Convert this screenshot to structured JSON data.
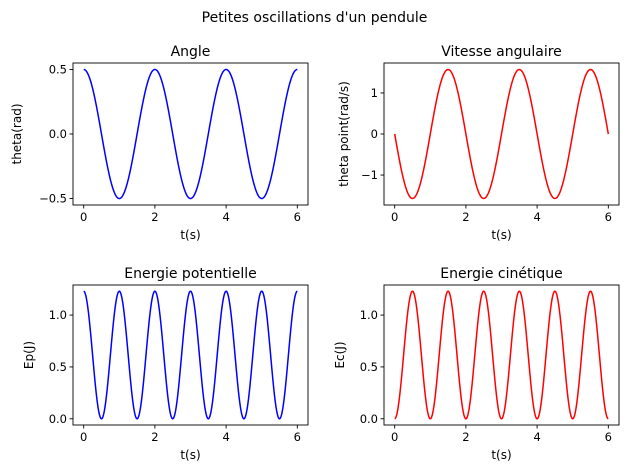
{
  "figure": {
    "suptitle": "Petites oscillations d'un pendule"
  },
  "chart_data": [
    {
      "type": "line",
      "title": "Angle",
      "xlabel": "t(s)",
      "ylabel": "theta(rad)",
      "xlim": [
        -0.3,
        6.3
      ],
      "ylim": [
        -0.55,
        0.55
      ],
      "xticks": [
        0,
        2,
        4,
        6
      ],
      "yticks": [
        -0.5,
        0.0,
        0.5
      ],
      "ytick_labels": [
        "−0.5",
        "0.0",
        "0.5"
      ],
      "color": "#0000ff",
      "x_range": [
        0,
        6
      ],
      "function": "0.5*cos(pi*t)",
      "series": [
        {
          "x": [
            0,
            0.5,
            1,
            1.5,
            2,
            2.5,
            3,
            3.5,
            4,
            4.5,
            5,
            5.5,
            6
          ],
          "values": [
            0.5,
            0,
            -0.5,
            0,
            0.5,
            0,
            -0.5,
            0,
            0.5,
            0,
            -0.5,
            0,
            0.5
          ]
        }
      ]
    },
    {
      "type": "line",
      "title": "Vitesse angulaire",
      "xlabel": "t(s)",
      "ylabel": "theta point(rad/s)",
      "xlim": [
        -0.3,
        6.3
      ],
      "ylim": [
        -1.73,
        1.73
      ],
      "xticks": [
        0,
        2,
        4,
        6
      ],
      "yticks": [
        -1,
        0,
        1
      ],
      "ytick_labels": [
        "−1",
        "0",
        "1"
      ],
      "color": "#ff0000",
      "x_range": [
        0,
        6
      ],
      "function": "-0.5*pi*sin(pi*t)",
      "series": [
        {
          "x": [
            0,
            0.5,
            1,
            1.5,
            2,
            2.5,
            3,
            3.5,
            4,
            4.5,
            5,
            5.5,
            6
          ],
          "values": [
            0,
            -1.57,
            0,
            1.57,
            0,
            -1.57,
            0,
            1.57,
            0,
            -1.57,
            0,
            1.57,
            0
          ]
        }
      ]
    },
    {
      "type": "line",
      "title": "Energie potentielle",
      "xlabel": "t(s)",
      "ylabel": "Ep(J)",
      "xlim": [
        -0.3,
        6.3
      ],
      "ylim": [
        -0.06,
        1.29
      ],
      "xticks": [
        0,
        2,
        4,
        6
      ],
      "yticks": [
        0.0,
        0.5,
        1.0
      ],
      "ytick_labels": [
        "0.0",
        "0.5",
        "1.0"
      ],
      "color": "#0000ff",
      "x_range": [
        0,
        6
      ],
      "function": "1.23*cos(pi*t)^2",
      "series": [
        {
          "x": [
            0,
            0.5,
            1,
            1.5,
            2,
            2.5,
            3,
            3.5,
            4,
            4.5,
            5,
            5.5,
            6
          ],
          "values": [
            1.23,
            0,
            1.23,
            0,
            1.23,
            0,
            1.23,
            0,
            1.23,
            0,
            1.23,
            0,
            1.23
          ]
        }
      ]
    },
    {
      "type": "line",
      "title": "Energie cinétique",
      "xlabel": "t(s)",
      "ylabel": "Ec(J)",
      "xlim": [
        -0.3,
        6.3
      ],
      "ylim": [
        -0.06,
        1.29
      ],
      "xticks": [
        0,
        2,
        4,
        6
      ],
      "yticks": [
        0.0,
        0.5,
        1.0
      ],
      "ytick_labels": [
        "0.0",
        "0.5",
        "1.0"
      ],
      "color": "#ff0000",
      "x_range": [
        0,
        6
      ],
      "function": "1.23*sin(pi*t)^2",
      "series": [
        {
          "x": [
            0,
            0.5,
            1,
            1.5,
            2,
            2.5,
            3,
            3.5,
            4,
            4.5,
            5,
            5.5,
            6
          ],
          "values": [
            0,
            1.23,
            0,
            1.23,
            0,
            1.23,
            0,
            1.23,
            0,
            1.23,
            0,
            1.23,
            0
          ]
        }
      ]
    }
  ]
}
